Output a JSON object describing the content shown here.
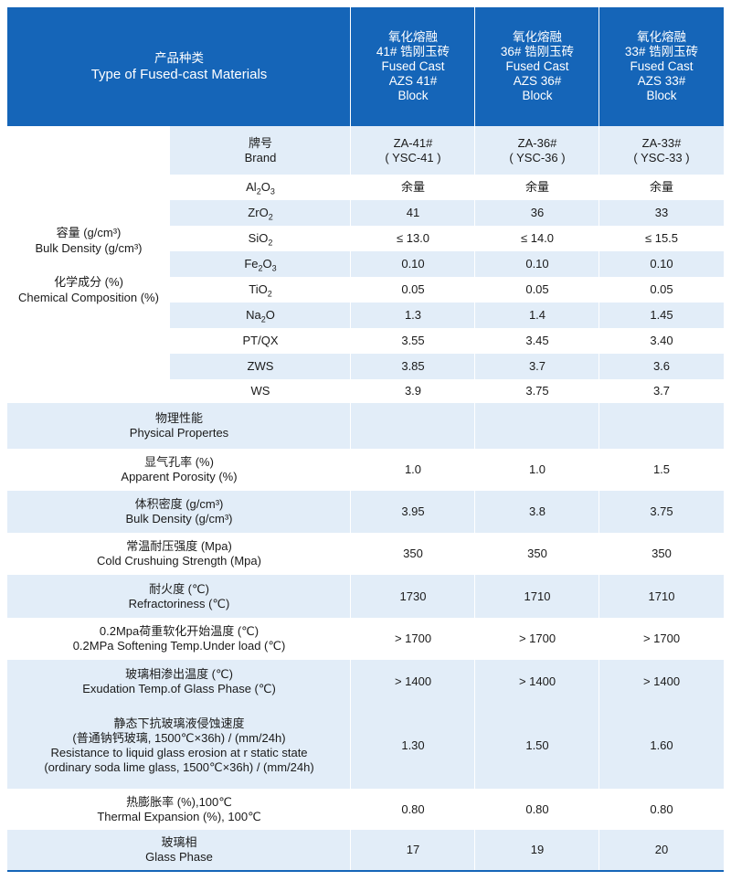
{
  "header": {
    "type_zh": "产品种类",
    "type_en": "Type of Fused-cast Materials",
    "products": [
      {
        "zh1": "氧化熔融",
        "zh2": "41# 锆刚玉砖",
        "en1": "Fused Cast",
        "en2": "AZS 41#",
        "en3": "Block"
      },
      {
        "zh1": "氧化熔融",
        "zh2": "36# 锆刚玉砖",
        "en1": "Fused Cast",
        "en2": "AZS 36#",
        "en3": "Block"
      },
      {
        "zh1": "氧化熔融",
        "zh2": "33# 锆刚玉砖",
        "en1": "Fused Cast",
        "en2": "AZS 33#",
        "en3": "Block"
      }
    ]
  },
  "brand": {
    "label_zh": "牌号",
    "label_en": "Brand",
    "values": [
      {
        "a": "ZA-41#",
        "b": "( YSC-41 )"
      },
      {
        "a": "ZA-36#",
        "b": "( YSC-36 )"
      },
      {
        "a": "ZA-33#",
        "b": "( YSC-33 )"
      }
    ]
  },
  "group_left": {
    "density_zh": "容量 (g/cm³)",
    "density_en": "Bulk Density (g/cm³)",
    "chem_zh": "化学成分 (%)",
    "chem_en": "Chemical Composition (%)"
  },
  "chem_rows": [
    {
      "label": "Al2O3",
      "v": [
        "余量",
        "余量",
        "余量"
      ]
    },
    {
      "label": "ZrO2",
      "v": [
        "41",
        "36",
        "33"
      ]
    },
    {
      "label": "SiO2",
      "v": [
        "≤ 13.0",
        "≤ 14.0",
        "≤ 15.5"
      ]
    },
    {
      "label": "Fe2O3",
      "v": [
        "0.10",
        "0.10",
        "0.10"
      ]
    },
    {
      "label": "TiO2",
      "v": [
        "0.05",
        "0.05",
        "0.05"
      ]
    },
    {
      "label": "Na2O",
      "v": [
        "1.3",
        "1.4",
        "1.45"
      ]
    },
    {
      "label": "PT/QX",
      "v": [
        "3.55",
        "3.45",
        "3.40"
      ]
    },
    {
      "label": "ZWS",
      "v": [
        "3.85",
        "3.7",
        "3.6"
      ]
    },
    {
      "label": "WS",
      "v": [
        "3.9",
        "3.75",
        "3.7"
      ]
    }
  ],
  "physical": {
    "zh": "物理性能",
    "en": "Physical Propertes"
  },
  "phys_rows": [
    {
      "zh": "显气孔率 (%)",
      "en": "Apparent Porosity (%)",
      "v": [
        "1.0",
        "1.0",
        "1.5"
      ]
    },
    {
      "zh": "体积密度 (g/cm³)",
      "en": "Bulk Density (g/cm³)",
      "v": [
        "3.95",
        "3.8",
        "3.75"
      ]
    },
    {
      "zh": "常温耐压强度 (Mpa)",
      "en": "Cold Crushuing Strength (Mpa)",
      "v": [
        "350",
        "350",
        "350"
      ]
    },
    {
      "zh": "耐火度 (℃)",
      "en": "Refractoriness (℃)",
      "v": [
        "1730",
        "1710",
        "1710"
      ]
    },
    {
      "zh": "0.2Mpa荷重软化开始温度 (℃)",
      "en": "0.2MPa Softening Temp.Under load (℃)",
      "v": [
        "> 1700",
        "> 1700",
        "> 1700"
      ]
    },
    {
      "zh": "玻璃相渗出温度 (℃)",
      "en": "Exudation Temp.of Glass Phase (℃)",
      "v": [
        "> 1400",
        "> 1400",
        "> 1400"
      ]
    }
  ],
  "resistance": {
    "l1": "静态下抗玻璃液侵蚀速度",
    "l2": "(普通钠钙玻璃, 1500℃×36h) / (mm/24h)",
    "l3": "Resistance to liquid glass erosion at r static state",
    "l4": "(ordinary soda lime glass, 1500℃×36h) / (mm/24h)",
    "v": [
      "1.30",
      "1.50",
      "1.60"
    ]
  },
  "thermal": {
    "zh": "热膨胀率 (%),100℃",
    "en": "Thermal Expansion (%), 100℃",
    "v": [
      "0.80",
      "0.80",
      "0.80"
    ]
  },
  "glass": {
    "zh": "玻璃相",
    "en": "Glass Phase",
    "v": [
      "17",
      "19",
      "20"
    ]
  },
  "colors": {
    "header_bg": "#1565b8",
    "tint_bg": "#e2edf8",
    "text": "#1a1a1a"
  }
}
